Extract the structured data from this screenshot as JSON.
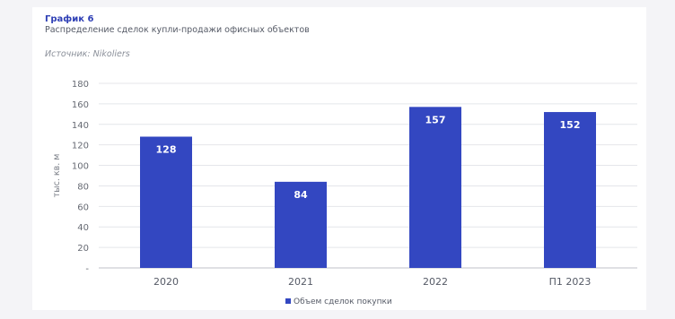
{
  "header": {
    "title": "График 6",
    "subtitle": "Распределение сделок купли-продажи офисных объектов",
    "source": "Источник: Nikoliers"
  },
  "colors": {
    "bar": "#3347c1",
    "grid": "#e4e6ea",
    "axis": "#bfc2c8"
  },
  "chart_data": {
    "type": "bar",
    "categories": [
      "2020",
      "2021",
      "2022",
      "П1 2023"
    ],
    "series": [
      {
        "name": "Объем сделок покупки",
        "values": [
          128,
          84,
          157,
          152
        ]
      }
    ],
    "ylabel": "тыс. кв. м",
    "ylim": [
      0,
      180
    ],
    "yticks": [
      "-",
      "20",
      "40",
      "60",
      "80",
      "100",
      "120",
      "140",
      "160",
      "180"
    ],
    "grid": true,
    "legend": "bottom",
    "data_labels": true
  }
}
